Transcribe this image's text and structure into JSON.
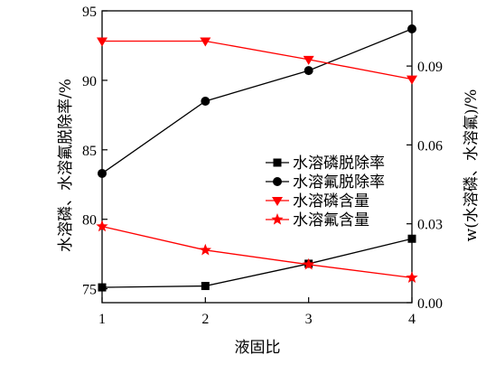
{
  "chart_data": {
    "type": "line",
    "xlabel": "液固比",
    "ylabel_left": "水溶磷、水溶氟脱除率/%",
    "ylabel_right": "w(水溶磷、水溶氟)/%",
    "x": [
      1,
      2,
      3,
      4
    ],
    "x_ticks": [
      "1",
      "2",
      "3",
      "4"
    ],
    "xlim": [
      1,
      4
    ],
    "ylim_left": [
      74,
      95
    ],
    "yticks_left": [
      "75",
      "80",
      "85",
      "90",
      "95"
    ],
    "ylim_right": [
      0,
      0.111
    ],
    "yticks_right": [
      "0.00",
      "0.03",
      "0.06",
      "0.09"
    ],
    "grid": false,
    "legend_position": "center-right",
    "series": [
      {
        "name": "水溶磷脱除率",
        "axis": "left",
        "marker": "square",
        "color": "#000000",
        "values": [
          75.1,
          75.2,
          76.8,
          78.6
        ]
      },
      {
        "name": "水溶氟脱除率",
        "axis": "left",
        "marker": "circle",
        "color": "#000000",
        "values": [
          83.3,
          88.5,
          90.7,
          93.7
        ]
      },
      {
        "name": "水溶磷含量",
        "axis": "right",
        "marker": "triangle-down",
        "color": "#ff0000",
        "values": [
          0.0995,
          0.0995,
          0.0925,
          0.085
        ]
      },
      {
        "name": "水溶氟含量",
        "axis": "right",
        "marker": "star",
        "color": "#ff0000",
        "values": [
          0.029,
          0.02,
          0.0145,
          0.0095
        ]
      }
    ]
  }
}
